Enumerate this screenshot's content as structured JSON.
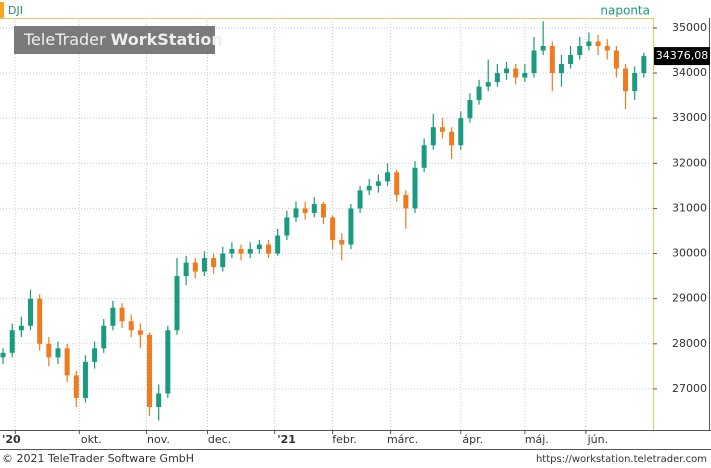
{
  "chart_data": {
    "type": "candlestick",
    "symbol": "DJI",
    "interval": "naponta",
    "watermark": [
      "TeleTrader",
      "WorkStation"
    ],
    "footer_left": "© 2021 TeleTrader Software GmbH",
    "footer_right": "https://workstation.teletrader.com",
    "up_color": "#1a9a80",
    "down_color": "#f07a1e",
    "grid": true,
    "x": [
      -4,
      -1,
      2,
      5,
      8,
      11,
      14,
      17,
      20,
      23,
      26,
      29,
      32,
      35,
      38,
      41,
      44,
      47,
      50,
      53,
      56,
      59,
      62,
      65,
      68,
      71,
      74,
      77,
      80,
      83,
      86,
      89,
      92,
      95,
      98,
      101,
      104,
      107,
      110,
      113,
      116,
      119,
      122,
      125,
      128,
      131,
      134,
      137,
      140,
      143,
      146,
      149,
      152,
      155,
      158,
      161,
      164,
      167,
      170,
      173,
      176,
      179,
      182,
      185,
      188,
      191,
      194,
      197,
      200,
      203,
      206
    ],
    "open": [
      27700,
      27800,
      28300,
      28400,
      29000,
      28000,
      27700,
      27900,
      27300,
      26800,
      27600,
      27900,
      28400,
      28800,
      28500,
      28300,
      28200,
      26600,
      26900,
      28300,
      29500,
      29800,
      29600,
      29900,
      29700,
      30000,
      30100,
      30000,
      30100,
      30200,
      30000,
      30400,
      30800,
      31000,
      30900,
      31100,
      30800,
      30300,
      30200,
      31000,
      31400,
      31500,
      31600,
      31800,
      31300,
      31000,
      31900,
      32400,
      32800,
      32700,
      32400,
      33000,
      33400,
      33700,
      33800,
      34000,
      34100,
      33900,
      34000,
      34500,
      34600,
      34000,
      34200,
      34400,
      34600,
      34700,
      34600,
      34500,
      34100,
      33600,
      34000
    ],
    "high": [
      27900,
      28450,
      28600,
      29200,
      29100,
      28150,
      28050,
      28000,
      27400,
      27750,
      28050,
      28550,
      28950,
      28900,
      28650,
      28450,
      28250,
      27100,
      28400,
      29900,
      29950,
      29900,
      30050,
      30000,
      30150,
      30250,
      30200,
      30250,
      30300,
      30300,
      30550,
      30950,
      31150,
      31150,
      31250,
      31150,
      30850,
      30450,
      31100,
      31500,
      31650,
      31750,
      32000,
      31850,
      31400,
      32050,
      32550,
      33100,
      33000,
      32800,
      33150,
      33550,
      33850,
      34300,
      34200,
      34250,
      34200,
      34200,
      34800,
      35150,
      34700,
      34400,
      34600,
      34800,
      34900,
      34850,
      34750,
      34600,
      34200,
      34150,
      34450
    ],
    "low": [
      27550,
      27700,
      28150,
      28300,
      27850,
      27500,
      27550,
      27150,
      26600,
      26700,
      27450,
      27800,
      28300,
      28350,
      28150,
      27900,
      26400,
      26300,
      26800,
      28200,
      29300,
      29450,
      29500,
      29550,
      29600,
      29900,
      29850,
      29900,
      30000,
      29900,
      29950,
      30300,
      30700,
      30750,
      30800,
      30650,
      30100,
      29850,
      30100,
      30900,
      31300,
      31350,
      31500,
      31150,
      30550,
      30900,
      31800,
      32300,
      32550,
      32100,
      32300,
      32900,
      33300,
      33600,
      33700,
      33850,
      33750,
      33800,
      33900,
      34400,
      33600,
      33700,
      34100,
      34300,
      34500,
      34400,
      34300,
      33900,
      33200,
      33400,
      33900
    ],
    "close": [
      27800,
      28300,
      28400,
      29000,
      28000,
      27700,
      27900,
      27300,
      26800,
      27600,
      27900,
      28400,
      28800,
      28500,
      28300,
      28200,
      26600,
      26900,
      28300,
      29500,
      29800,
      29600,
      29900,
      29700,
      30000,
      30100,
      30000,
      30100,
      30200,
      30000,
      30400,
      30800,
      31000,
      30900,
      31100,
      30800,
      30300,
      30200,
      31000,
      31400,
      31500,
      31600,
      31800,
      31300,
      31000,
      31900,
      32400,
      32800,
      32700,
      32400,
      33000,
      33400,
      33700,
      33800,
      34000,
      34100,
      33900,
      34000,
      34500,
      34600,
      34000,
      34200,
      34400,
      34600,
      34700,
      34600,
      34500,
      34100,
      33600,
      34000,
      34376.08
    ],
    "last_value_label": "34376,08",
    "xlim": [
      -5,
      209
    ],
    "xticks": [
      {
        "value": 0,
        "label": "'20"
      },
      {
        "value": 21,
        "label": "okt."
      },
      {
        "value": 43,
        "label": "nov."
      },
      {
        "value": 63,
        "label": "dec."
      },
      {
        "value": 85,
        "label": "'21"
      },
      {
        "value": 104,
        "label": "febr."
      },
      {
        "value": 123,
        "label": "márc."
      },
      {
        "value": 146,
        "label": "ápr."
      },
      {
        "value": 167,
        "label": "máj."
      },
      {
        "value": 187,
        "label": "jún."
      }
    ],
    "ylim": [
      26090,
      35220
    ],
    "yticks": [
      27000,
      28000,
      29000,
      30000,
      31000,
      32000,
      33000,
      34000,
      35000
    ]
  }
}
